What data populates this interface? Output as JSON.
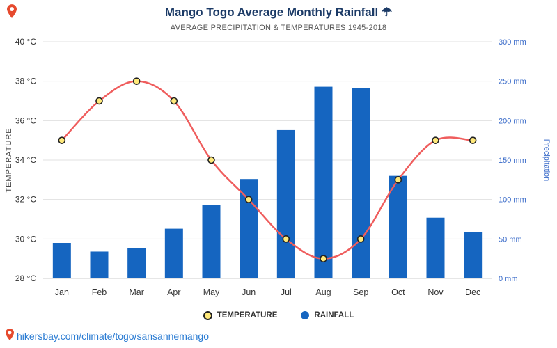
{
  "header": {
    "title": "Mango Togo Average Monthly Rainfall ☂",
    "subtitle": "AVERAGE PRECIPITATION & TEMPERATURES 1945-2018"
  },
  "footer": {
    "link": "hikersbay.com/climate/togo/sansannemango"
  },
  "chart_data": {
    "type": "bar+line",
    "title": "Mango Togo Average Monthly Rainfall",
    "subtitle": "AVERAGE PRECIPITATION & TEMPERATURES 1945-2018",
    "categories": [
      "Jan",
      "Feb",
      "Mar",
      "Apr",
      "May",
      "Jun",
      "Jul",
      "Aug",
      "Sep",
      "Oct",
      "Nov",
      "Dec"
    ],
    "series": [
      {
        "name": "RAINFALL",
        "type": "bar",
        "axis": "right",
        "unit": "mm",
        "values": [
          45,
          34,
          38,
          63,
          93,
          126,
          188,
          243,
          241,
          130,
          77,
          59
        ]
      },
      {
        "name": "TEMPERATURE",
        "type": "line",
        "axis": "left",
        "unit": "°C",
        "values": [
          35,
          37,
          38,
          37,
          34,
          32,
          30,
          29,
          30,
          33,
          35,
          35
        ]
      }
    ],
    "left_axis": {
      "label": "TEMPERATURE",
      "min": 28,
      "max": 40,
      "step": 2,
      "suffix": " °C"
    },
    "right_axis": {
      "label": "Precipitation",
      "min": 0,
      "max": 300,
      "step": 50,
      "suffix": " mm"
    },
    "grid": true,
    "legend_position": "bottom",
    "colors": {
      "bar": "#1565c0",
      "line": "#ef5d5d",
      "marker": "#ffe97a",
      "marker_stroke": "#222222",
      "right_axis": "#3a6bc9",
      "left_axis_text": "#333333",
      "grid": "#e0e0e0",
      "title": "#1b3a66",
      "link": "#2b7cd3",
      "pin": "#e64a2e"
    }
  }
}
